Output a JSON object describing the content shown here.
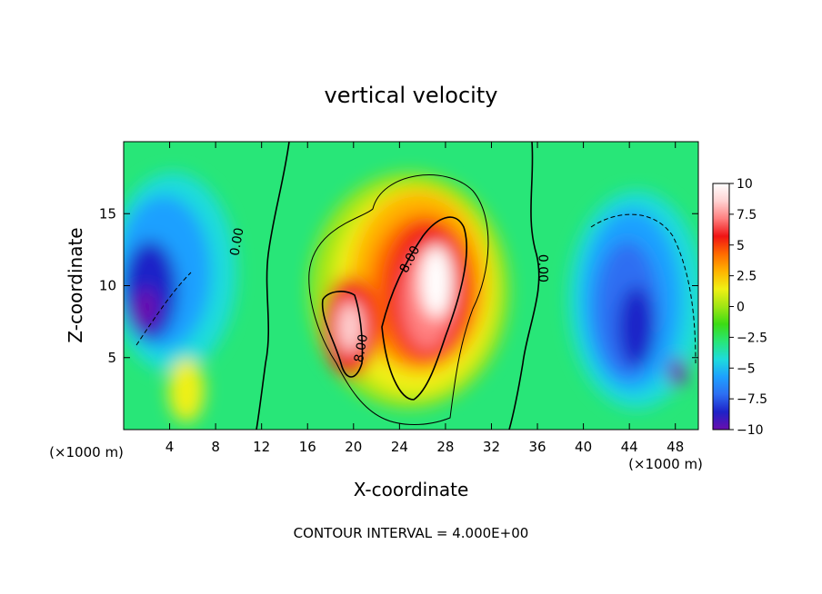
{
  "chart_data": {
    "type": "heatmap",
    "title": "vertical velocity",
    "xlabel": "X-coordinate",
    "ylabel": "Z-coordinate",
    "x_unit_label": "(×1000 m)",
    "y_unit_label": "(×1000 m)",
    "xlim": [
      0,
      50
    ],
    "ylim": [
      0,
      20
    ],
    "x_ticks": [
      4,
      8,
      12,
      16,
      20,
      24,
      28,
      32,
      36,
      40,
      44,
      48
    ],
    "y_ticks": [
      5,
      10,
      15
    ],
    "footer": "CONTOUR INTERVAL = 4.000E+00",
    "colorbar": {
      "range": [
        -10,
        10
      ],
      "ticks": [
        "10",
        "7.5",
        "5",
        "2.5",
        "0",
        "−2.5",
        "−5",
        "−7.5",
        "−10"
      ],
      "colors": [
        "#6a0dad",
        "#1e22c8",
        "#2d6ef2",
        "#1ea0ff",
        "#1edcdc",
        "#28e678",
        "#3cdc14",
        "#a0e614",
        "#f0f014",
        "#ffb400",
        "#ff6a00",
        "#f01414",
        "#ff7f7f",
        "#ffd2d2",
        "#ffffff"
      ]
    },
    "contour_labels": [
      {
        "text": "0.00",
        "x": 10.2,
        "z": 13.0,
        "rotate": -80
      },
      {
        "text": "8.00",
        "x": 21.0,
        "z": 5.6,
        "rotate": -80
      },
      {
        "text": "8.00",
        "x": 25.2,
        "z": 11.7,
        "rotate": -62
      },
      {
        "text": "0.00",
        "x": 36.1,
        "z": 11.2,
        "rotate": 90
      }
    ],
    "features": [
      {
        "type": "updraft",
        "center_x": 27,
        "center_z": 9,
        "peak": 10
      },
      {
        "type": "updraft",
        "center_x": 20,
        "center_z": 7,
        "peak": 10
      },
      {
        "type": "downdraft",
        "center_x": 3,
        "center_z": 9,
        "peak": -9
      },
      {
        "type": "downdraft",
        "center_x": 44,
        "center_z": 9,
        "peak": -9
      }
    ]
  }
}
